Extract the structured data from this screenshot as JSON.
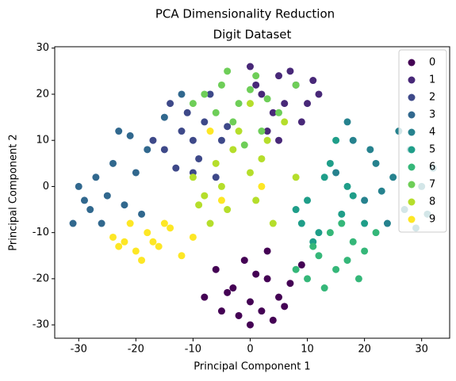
{
  "chart_data": {
    "type": "scatter",
    "title": "PCA Dimensionality Reduction",
    "subtitle": "Digit Dataset",
    "x_label": "Principal Component 1",
    "y_label": "Principal Component 2",
    "xlim": [
      -34.2,
      34.9
    ],
    "ylim": [
      -32.9,
      30.3
    ],
    "xticks": [
      -30,
      -20,
      -10,
      0,
      10,
      20,
      30
    ],
    "yticks": [
      -30,
      -20,
      -10,
      0,
      10,
      20,
      30
    ],
    "legend": "upper right",
    "series": [
      {
        "name": "0",
        "color": "#440154",
        "x": [
          -3,
          0,
          3,
          5,
          -6,
          -2,
          2,
          7,
          -4,
          1,
          4,
          9,
          -8,
          0,
          -1,
          6,
          3,
          -5
        ],
        "values": [
          -22,
          -25,
          -20,
          -24,
          -18,
          -28,
          -27,
          -21,
          -23,
          -19,
          -29,
          -17,
          -24,
          -30,
          -16,
          -26,
          -14,
          -27
        ]
      },
      {
        "name": "1",
        "color": "#482878",
        "x": [
          2,
          5,
          8,
          10,
          0,
          4,
          7,
          12,
          3,
          6,
          9,
          11,
          1,
          5
        ],
        "values": [
          20,
          24,
          22,
          18,
          26,
          16,
          25,
          20,
          12,
          18,
          14,
          23,
          22,
          10
        ]
      },
      {
        "name": "2",
        "color": "#3e4989",
        "x": [
          -15,
          -12,
          -10,
          -8,
          -5,
          -13,
          -9,
          -6,
          -11,
          -17,
          -4,
          -7,
          -14,
          -10
        ],
        "values": [
          8,
          12,
          10,
          14,
          10,
          4,
          6,
          2,
          16,
          10,
          13,
          20,
          18,
          3
        ]
      },
      {
        "name": "3",
        "color": "#31688e",
        "x": [
          -31,
          -28,
          -25,
          -22,
          -27,
          -24,
          -20,
          -26,
          -30,
          -18,
          -23,
          -15,
          -19,
          -29,
          -21,
          -12
        ],
        "values": [
          -8,
          -5,
          -2,
          -4,
          2,
          5,
          3,
          -8,
          0,
          8,
          12,
          15,
          -6,
          -3,
          11,
          20
        ]
      },
      {
        "name": "4",
        "color": "#26828e",
        "x": [
          22,
          25,
          28,
          30,
          20,
          24,
          27,
          32,
          18,
          26,
          23,
          29,
          15,
          21,
          31,
          17
        ],
        "values": [
          5,
          2,
          8,
          0,
          -3,
          -8,
          -5,
          4,
          10,
          12,
          -1,
          -9,
          3,
          8,
          -6,
          14
        ]
      },
      {
        "name": "5",
        "color": "#1f9e89",
        "x": [
          10,
          13,
          16,
          12,
          18,
          9,
          14,
          11,
          20,
          15,
          8,
          17
        ],
        "values": [
          -3,
          2,
          -6,
          -10,
          -2,
          -8,
          5,
          -12,
          -8,
          10,
          -5,
          0
        ]
      },
      {
        "name": "6",
        "color": "#35b779",
        "x": [
          12,
          15,
          18,
          14,
          17,
          10,
          20,
          13,
          16,
          19,
          11,
          22,
          8
        ],
        "values": [
          -15,
          -18,
          -12,
          -10,
          -16,
          -20,
          -14,
          -22,
          -8,
          -20,
          -13,
          -10,
          -18
        ]
      },
      {
        "name": "7",
        "color": "#6ece58",
        "x": [
          -8,
          -5,
          -2,
          1,
          3,
          -6,
          -3,
          0,
          2,
          -10,
          -4,
          5,
          8,
          -1
        ],
        "values": [
          20,
          22,
          18,
          24,
          19,
          16,
          14,
          21,
          12,
          18,
          25,
          16,
          22,
          9
        ]
      },
      {
        "name": "8",
        "color": "#b5de2b",
        "x": [
          -6,
          -3,
          0,
          3,
          -8,
          -5,
          -2,
          2,
          -10,
          -4,
          1,
          4,
          6,
          -7,
          0,
          8,
          -9
        ],
        "values": [
          5,
          8,
          3,
          10,
          -2,
          0,
          12,
          6,
          2,
          -5,
          -3,
          -8,
          14,
          -8,
          18,
          2,
          -4
        ]
      },
      {
        "name": "9",
        "color": "#fde725",
        "x": [
          -22,
          -20,
          -18,
          -24,
          -16,
          -14,
          -19,
          -12,
          -21,
          -17,
          -10,
          -23,
          -15,
          -5,
          2,
          -7
        ],
        "values": [
          -12,
          -14,
          -10,
          -11,
          -13,
          -9,
          -16,
          -15,
          -8,
          -12,
          -11,
          -13,
          -8,
          -3,
          0,
          12
        ]
      }
    ]
  }
}
